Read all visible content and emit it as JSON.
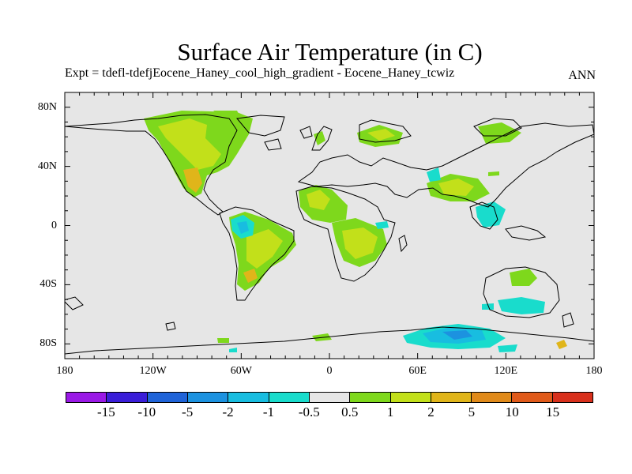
{
  "title": "Surface Air Temperature (in C)",
  "subtitle": "Expt = tdefl-tdefjEocene_Haney_cool_high_gradient - Eocene_Haney_tcwiz",
  "season": "ANN",
  "y_ticks": [
    {
      "label": "80N",
      "lat": 80
    },
    {
      "label": "40N",
      "lat": 40
    },
    {
      "label": "0",
      "lat": 0
    },
    {
      "label": "40S",
      "lat": -40
    },
    {
      "label": "80S",
      "lat": -80
    }
  ],
  "x_ticks": [
    {
      "label": "180",
      "lon": -180
    },
    {
      "label": "120W",
      "lon": -120
    },
    {
      "label": "60W",
      "lon": -60
    },
    {
      "label": "0",
      "lon": 0
    },
    {
      "label": "60E",
      "lon": 60
    },
    {
      "label": "120E",
      "lon": 120
    },
    {
      "label": "180",
      "lon": 180
    }
  ],
  "colorbar": {
    "colors": [
      "#9a19e6",
      "#3a1ed8",
      "#1f63d8",
      "#1c92e0",
      "#18bde0",
      "#19dccc",
      "#e6e6e6",
      "#7ed81c",
      "#c2e01a",
      "#e0b51a",
      "#e08a1a",
      "#e05a1a",
      "#d8301c"
    ],
    "labels": [
      "-15",
      "-10",
      "-5",
      "-2",
      "-1",
      "-0.5",
      "0.5",
      "1",
      "2",
      "5",
      "10",
      "15"
    ]
  },
  "colors": {
    "background": "#e6e6e6",
    "coast": "#000000"
  }
}
